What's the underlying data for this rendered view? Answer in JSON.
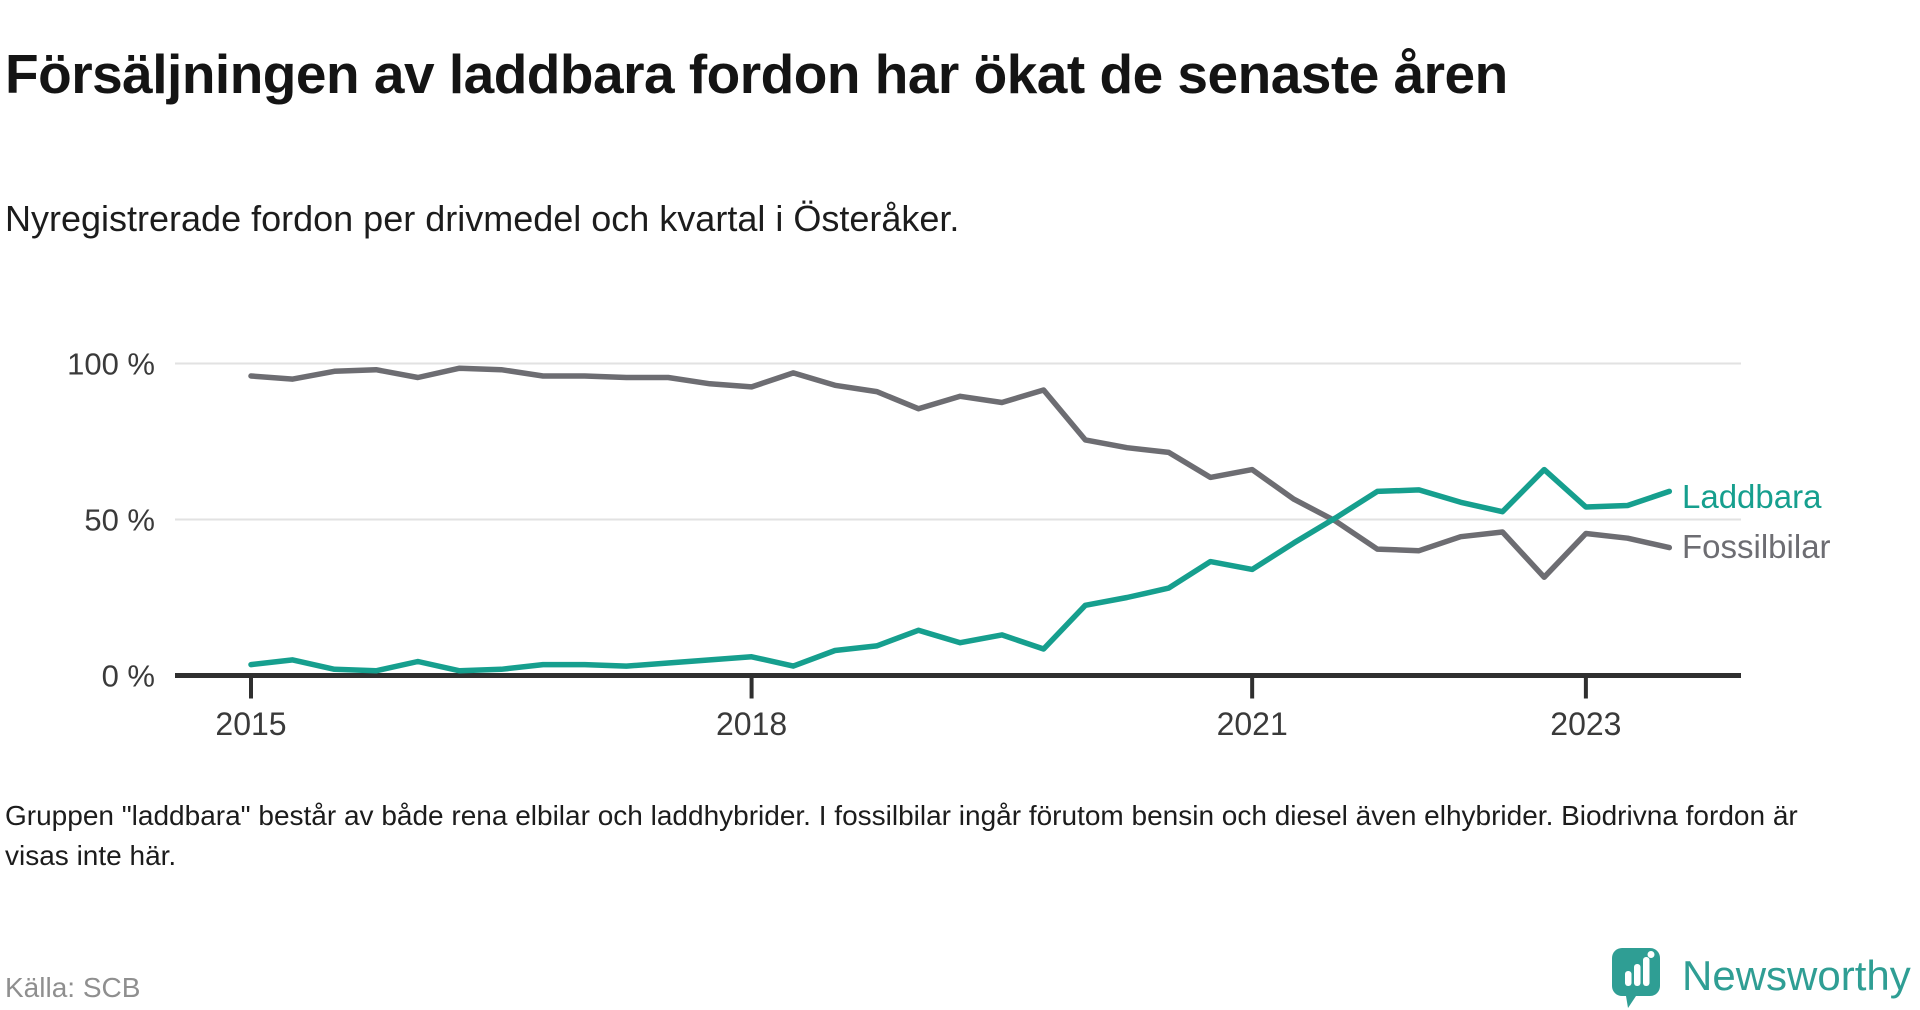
{
  "chart_data": {
    "type": "line",
    "title": "Försäljningen av laddbara fordon har ökat de senaste åren",
    "subtitle": "Nyregistrerade fordon per drivmedel och kvartal i Österåker.",
    "ylim": [
      0,
      100
    ],
    "grid": "horizontal",
    "legend": "end-of-line-labels",
    "y_ticks": [
      {
        "label": "100 %",
        "value": 100
      },
      {
        "label": "50 %",
        "value": 50
      },
      {
        "label": "0 %",
        "value": 0
      }
    ],
    "x_ticks": [
      {
        "label": "2015",
        "index": 0
      },
      {
        "label": "2018",
        "index": 12
      },
      {
        "label": "2021",
        "index": 24
      },
      {
        "label": "2023",
        "index": 32
      }
    ],
    "x_labels": [
      "2015 Q1",
      "2015 Q2",
      "2015 Q3",
      "2015 Q4",
      "2016 Q1",
      "2016 Q2",
      "2016 Q3",
      "2016 Q4",
      "2017 Q1",
      "2017 Q2",
      "2017 Q3",
      "2017 Q4",
      "2018 Q1",
      "2018 Q2",
      "2018 Q3",
      "2018 Q4",
      "2019 Q1",
      "2019 Q2",
      "2019 Q3",
      "2019 Q4",
      "2020 Q1",
      "2020 Q2",
      "2020 Q3",
      "2020 Q4",
      "2021 Q1",
      "2021 Q2",
      "2021 Q3",
      "2021 Q4",
      "2022 Q1",
      "2022 Q2",
      "2022 Q3",
      "2022 Q4",
      "2023 Q1",
      "2023 Q2",
      "2023 Q3"
    ],
    "series": [
      {
        "name": "Laddbara",
        "color": "#169f8e",
        "values": [
          3.5,
          5,
          2,
          1.5,
          4.5,
          1.5,
          2,
          3.5,
          3.5,
          3,
          4,
          5,
          6,
          3,
          8,
          9.5,
          14.5,
          10.5,
          13,
          8.5,
          22.5,
          25,
          28,
          36.5,
          34,
          42.5,
          50.5,
          59,
          59.5,
          55.5,
          52.5,
          66,
          54,
          54.5,
          59
        ]
      },
      {
        "name": "Fossilbilar",
        "color": "#6d6d72",
        "values": [
          96,
          95,
          97.5,
          98,
          95.5,
          98.5,
          98,
          96,
          96,
          95.5,
          95.5,
          93.5,
          92.5,
          97,
          93,
          91,
          85.5,
          89.5,
          87.5,
          91.5,
          75.5,
          73,
          71.5,
          63.5,
          66,
          56.5,
          49.5,
          40.5,
          40,
          44.5,
          46,
          31.5,
          45.5,
          44,
          41
        ]
      }
    ]
  },
  "footer": {
    "note": "Gruppen \"laddbara\" består av både rena elbilar och laddhybrider. I fossilbilar ingår förutom bensin och diesel även elhybrider. Biodrivna fordon är visas inte här.",
    "source": "Källa: SCB",
    "brand": "Newsworthy"
  },
  "colors": {
    "accent_teal": "#169f8e",
    "line_gray": "#6d6d72",
    "brand_teal": "#2f9e94",
    "axis_dark": "#2f2f2f",
    "gridline": "#e2e2e2"
  }
}
